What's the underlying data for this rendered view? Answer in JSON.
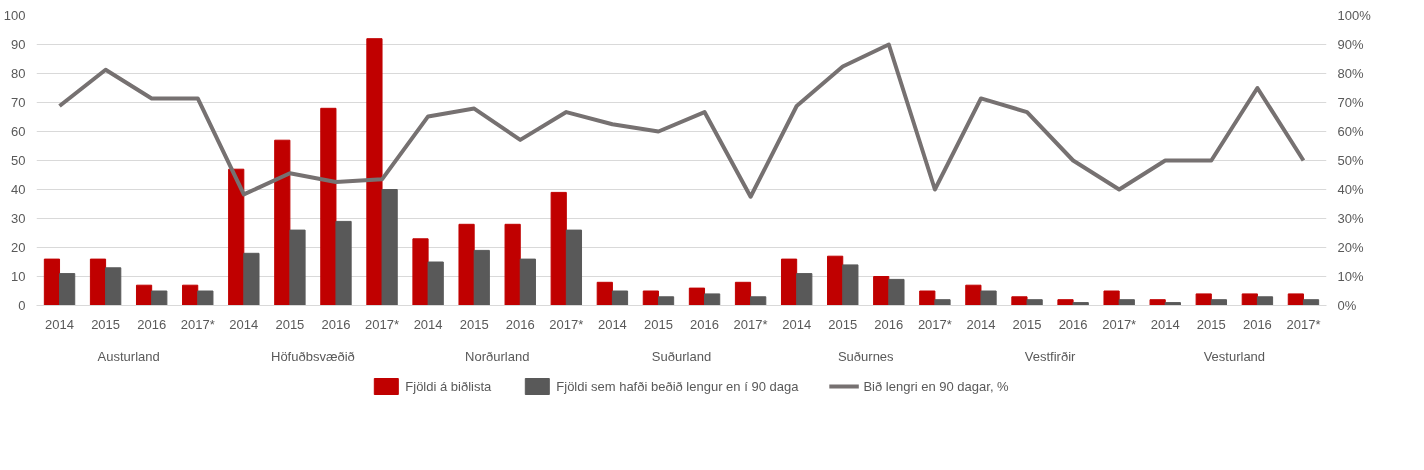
{
  "chart_data": {
    "type": "bar",
    "categories": [
      "2014",
      "2015",
      "2016",
      "2017*",
      "2014",
      "2015",
      "2016",
      "2017*",
      "2014",
      "2015",
      "2016",
      "2017*",
      "2014",
      "2015",
      "2016",
      "2017*",
      "2014",
      "2015",
      "2016",
      "2017*",
      "2014",
      "2015",
      "2016",
      "2017*",
      "2014",
      "2015",
      "2016",
      "2017*"
    ],
    "annotations": [
      "Austurland",
      "Höfuðbsvæðið",
      "Norðurland",
      "Suðurland",
      "Suðurnes",
      "Vestfirðir",
      "Vesturland"
    ],
    "series": [
      {
        "name": "Fjöldi á biðlista",
        "color": "#c00000",
        "values": [
          16,
          16,
          7,
          7,
          47,
          57,
          68,
          92,
          23,
          28,
          28,
          39,
          8,
          5,
          6,
          8,
          16,
          17,
          10,
          5,
          7,
          3,
          2,
          5,
          2,
          4,
          4,
          4
        ]
      },
      {
        "name": "Fjöldi sem hafði beðið lengur en í 90 daga",
        "color": "#595959",
        "values": [
          11,
          13,
          5,
          5,
          18,
          26,
          29,
          40,
          15,
          19,
          16,
          26,
          5,
          3,
          4,
          3,
          11,
          14,
          9,
          2,
          5,
          2,
          1,
          2,
          1,
          2,
          3,
          2
        ]
      },
      {
        "name": "Bið lengri en 90 dagar, %",
        "type": "line",
        "axis": "y2",
        "color": "#767171",
        "values": [
          68.8,
          81.3,
          71.4,
          71.4,
          38.3,
          45.6,
          42.6,
          43.5,
          65.2,
          67.9,
          57.1,
          66.7,
          62.5,
          60,
          66.7,
          37.5,
          68.8,
          82.4,
          90,
          40,
          71.4,
          66.7,
          50,
          40,
          50,
          50,
          75,
          50
        ]
      }
    ],
    "ylim": [
      0,
      100
    ],
    "yticks": [
      0,
      10,
      20,
      30,
      40,
      50,
      60,
      70,
      80,
      90,
      100
    ],
    "y2lim": [
      0,
      100
    ],
    "y2ticks": [
      {
        "value": 0,
        "label": "0%"
      },
      {
        "value": 10,
        "label": "10%"
      },
      {
        "value": 20,
        "label": "20%"
      },
      {
        "value": 30,
        "label": "30%"
      },
      {
        "value": 40,
        "label": "40%"
      },
      {
        "value": 50,
        "label": "50%"
      },
      {
        "value": 60,
        "label": "60%"
      },
      {
        "value": 70,
        "label": "70%"
      },
      {
        "value": 80,
        "label": "80%"
      },
      {
        "value": 90,
        "label": "90%"
      },
      {
        "value": 100,
        "label": "100%"
      }
    ],
    "grid": "y",
    "legend": "bottom"
  }
}
